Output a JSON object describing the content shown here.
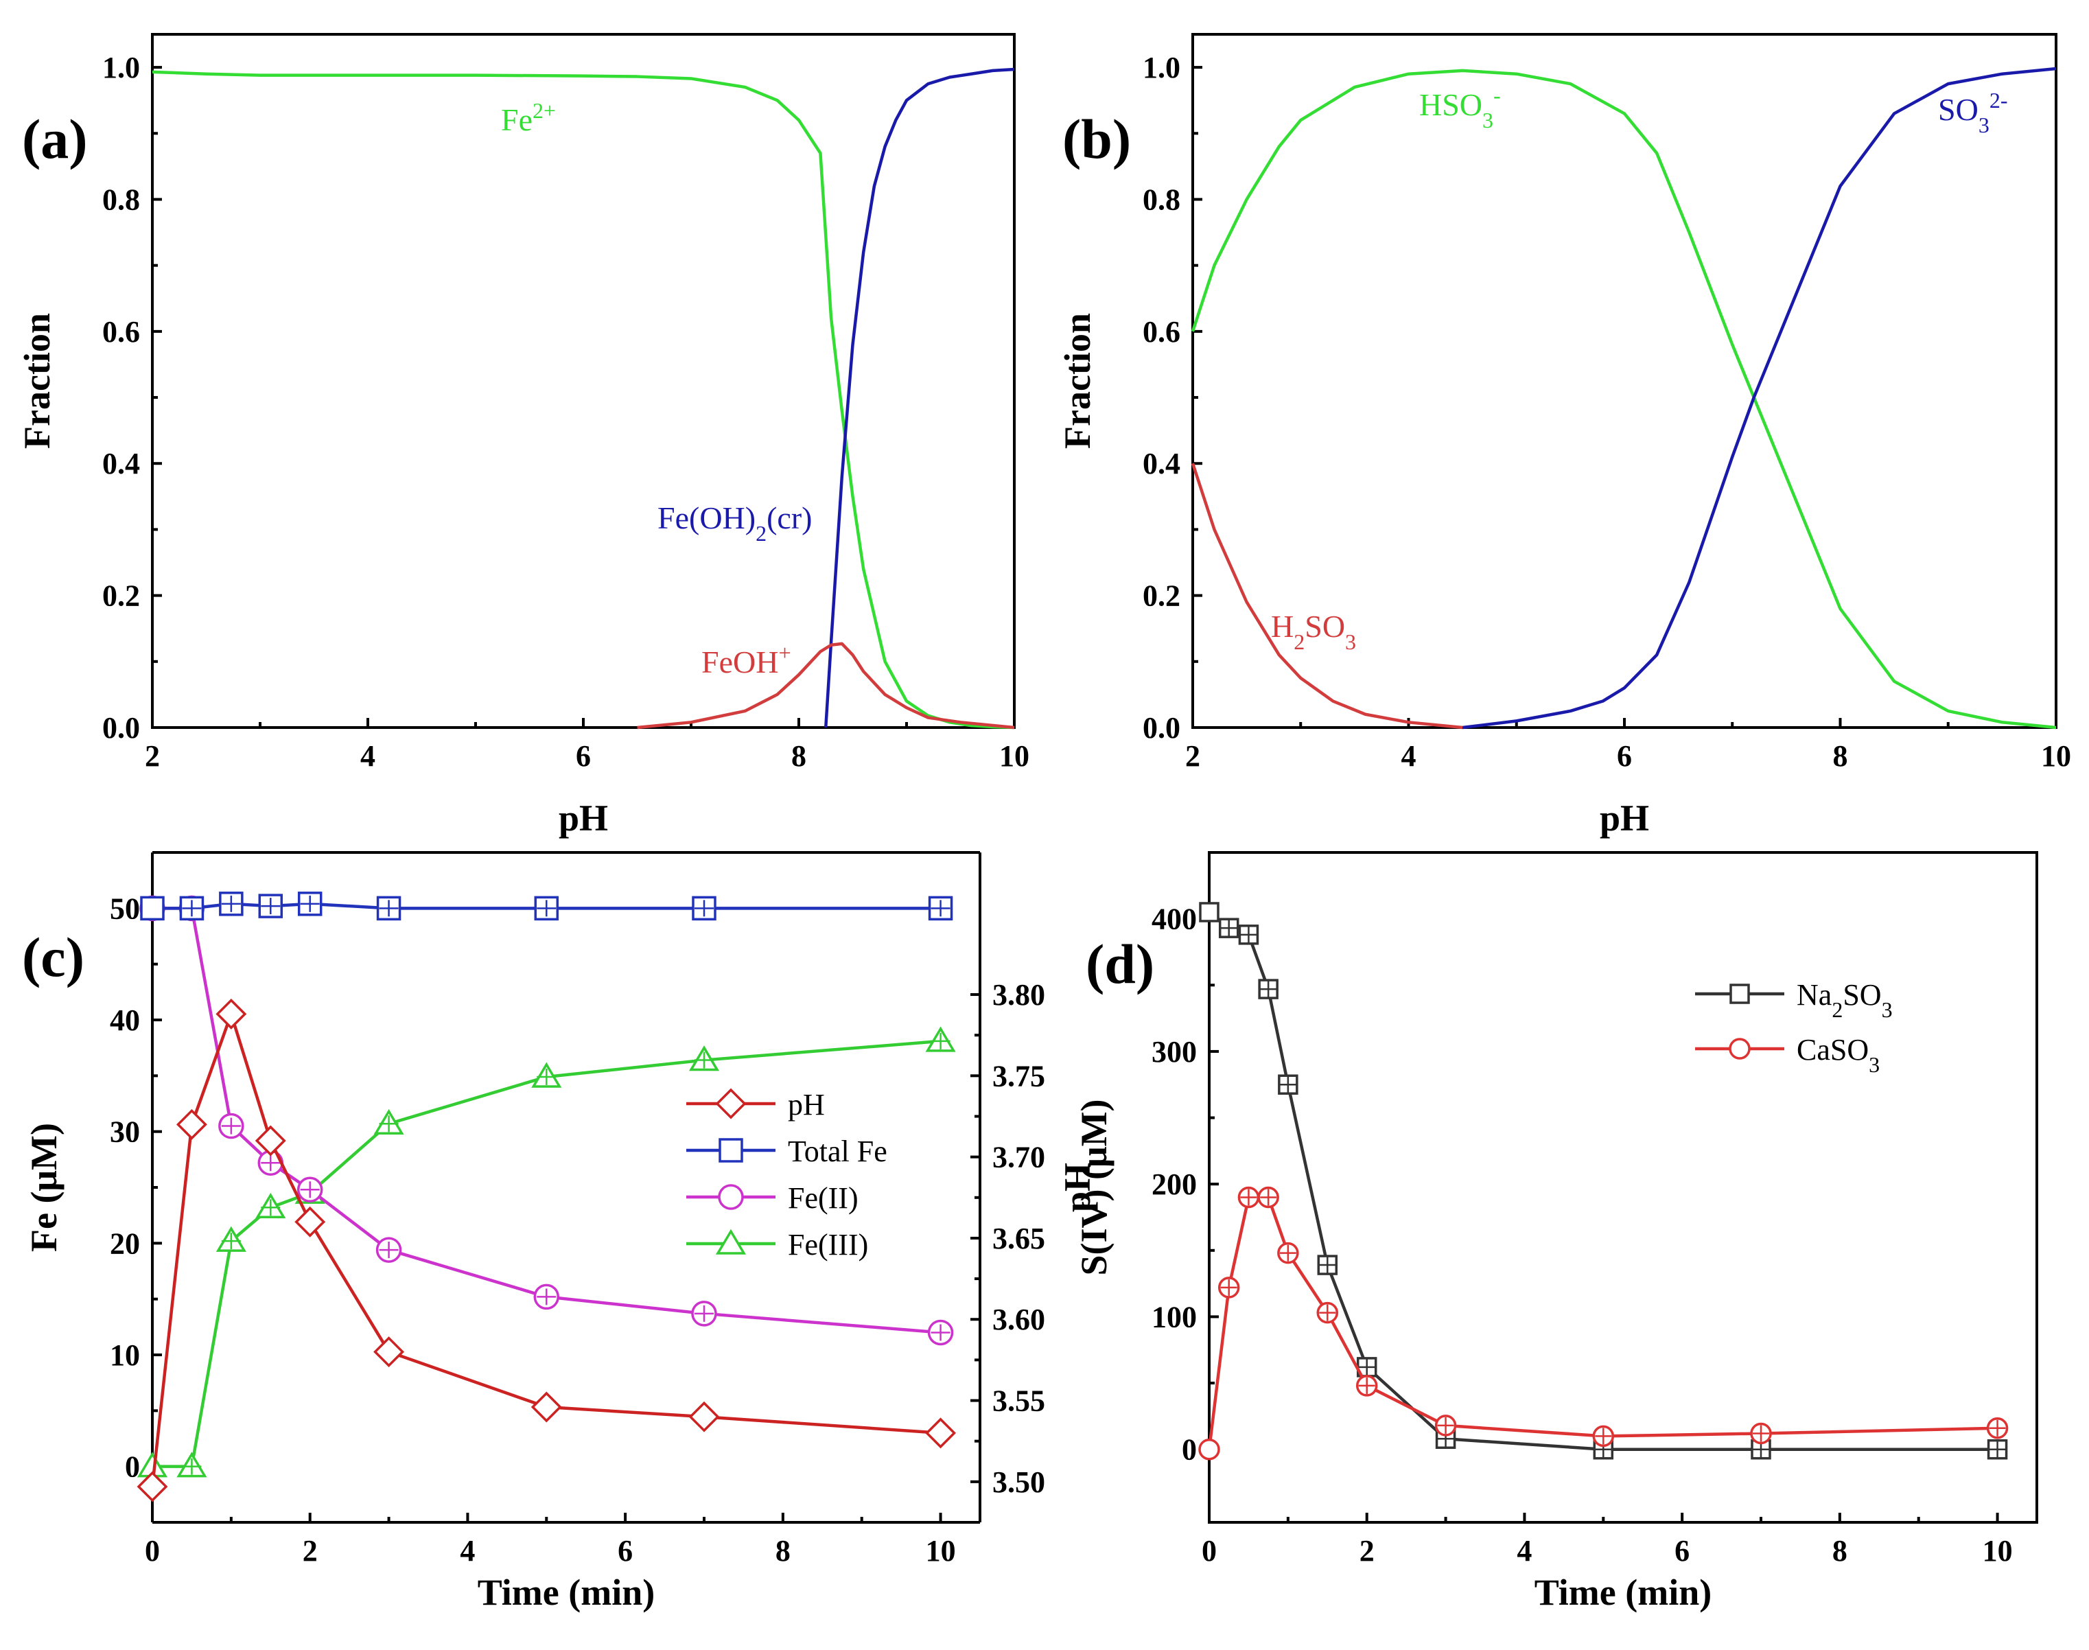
{
  "chart_data": [
    {
      "panel": "(a)",
      "type": "line",
      "xlabel": "pH",
      "ylabel": "Fraction",
      "xlim": [
        2,
        10
      ],
      "ylim": [
        0,
        1.05
      ],
      "xticks": [
        2,
        4,
        6,
        8,
        10
      ],
      "yticks": [
        0.0,
        0.2,
        0.4,
        0.6,
        0.8,
        1.0
      ],
      "ytick_labels": [
        "0.0",
        "0.2",
        "0.4",
        "0.6",
        "0.8",
        "1.0"
      ],
      "grid": false,
      "series": [
        {
          "label_main": "Fe",
          "label_sup": "2+",
          "label_sub": "",
          "label_tail": "",
          "color": "#33dd33",
          "x": [
            2,
            2.5,
            3,
            4,
            5,
            6,
            6.5,
            7,
            7.5,
            7.8,
            8.0,
            8.2,
            8.3,
            8.4,
            8.5,
            8.6,
            8.8,
            9.0,
            9.2,
            9.4,
            9.6,
            9.8,
            10
          ],
          "y": [
            0.993,
            0.99,
            0.988,
            0.988,
            0.988,
            0.987,
            0.986,
            0.983,
            0.97,
            0.95,
            0.92,
            0.87,
            0.62,
            0.48,
            0.35,
            0.24,
            0.1,
            0.04,
            0.018,
            0.008,
            0.003,
            0.001,
            0.0
          ]
        },
        {
          "label_main": "Fe(OH)",
          "label_sup": "",
          "label_sub": "2",
          "label_tail": "(cr)",
          "color": "#1a1aaa",
          "x": [
            8.25,
            8.3,
            8.4,
            8.5,
            8.6,
            8.7,
            8.8,
            8.9,
            9.0,
            9.2,
            9.4,
            9.6,
            9.8,
            10
          ],
          "y": [
            0.0,
            0.13,
            0.38,
            0.58,
            0.72,
            0.82,
            0.88,
            0.92,
            0.95,
            0.975,
            0.985,
            0.99,
            0.995,
            0.997
          ]
        },
        {
          "label_main": "FeOH",
          "label_sup": "+",
          "label_sub": "",
          "label_tail": "",
          "color": "#d23c3c",
          "x": [
            6.5,
            7.0,
            7.5,
            7.8,
            8.0,
            8.2,
            8.3,
            8.4,
            8.5,
            8.6,
            8.8,
            9.0,
            9.2,
            9.5,
            10
          ],
          "y": [
            0.0,
            0.008,
            0.025,
            0.05,
            0.08,
            0.115,
            0.125,
            0.127,
            0.11,
            0.085,
            0.05,
            0.03,
            0.015,
            0.008,
            0.0
          ]
        }
      ]
    },
    {
      "panel": "(b)",
      "type": "line",
      "xlabel": "pH",
      "ylabel": "Fraction",
      "xlim": [
        2,
        10
      ],
      "ylim": [
        0,
        1.05
      ],
      "xticks": [
        2,
        4,
        6,
        8,
        10
      ],
      "yticks": [
        0.0,
        0.2,
        0.4,
        0.6,
        0.8,
        1.0
      ],
      "ytick_labels": [
        "0.0",
        "0.2",
        "0.4",
        "0.6",
        "0.8",
        "1.0"
      ],
      "grid": false,
      "series": [
        {
          "label_main": "HSO",
          "label_sup": "-",
          "label_sub": "3",
          "label_tail": "",
          "color": "#33dd33",
          "x": [
            2,
            2.2,
            2.5,
            2.8,
            3.0,
            3.5,
            4.0,
            4.5,
            5.0,
            5.5,
            6.0,
            6.3,
            6.6,
            7.0,
            7.2,
            7.5,
            8.0,
            8.5,
            9.0,
            9.5,
            10
          ],
          "y": [
            0.6,
            0.7,
            0.8,
            0.88,
            0.92,
            0.97,
            0.99,
            0.995,
            0.99,
            0.975,
            0.93,
            0.87,
            0.75,
            0.58,
            0.5,
            0.38,
            0.18,
            0.07,
            0.025,
            0.008,
            0.0
          ]
        },
        {
          "label_main": "SO",
          "label_sup": "2-",
          "label_sub": "3",
          "label_tail": "",
          "color": "#1a1aaa",
          "x": [
            4.5,
            5.0,
            5.5,
            5.8,
            6.0,
            6.3,
            6.6,
            7.0,
            7.2,
            7.5,
            8.0,
            8.5,
            9.0,
            9.5,
            10
          ],
          "y": [
            0.0,
            0.01,
            0.025,
            0.04,
            0.06,
            0.11,
            0.22,
            0.41,
            0.5,
            0.62,
            0.82,
            0.93,
            0.975,
            0.99,
            0.998
          ]
        },
        {
          "label_main": "H",
          "label_sup": "",
          "label_sub": "2",
          "label_tail": "SO3",
          "color": "#d23c3c",
          "x": [
            2,
            2.2,
            2.5,
            2.8,
            3.0,
            3.3,
            3.6,
            4.0,
            4.5
          ],
          "y": [
            0.4,
            0.3,
            0.19,
            0.11,
            0.075,
            0.04,
            0.02,
            0.008,
            0.0
          ]
        }
      ]
    },
    {
      "panel": "(c)",
      "type": "line",
      "xlabel": "Time (min)",
      "ylabel": "Fe (μM)",
      "ylabel_right": "pH",
      "xlim": [
        0,
        10.5
      ],
      "ylim": [
        -5,
        55
      ],
      "ylim_right": [
        3.475,
        3.8875
      ],
      "xticks": [
        0,
        2,
        4,
        6,
        8,
        10
      ],
      "yticks": [
        0,
        10,
        20,
        30,
        40,
        50
      ],
      "yticks_right": [
        3.5,
        3.55,
        3.6,
        3.65,
        3.7,
        3.75,
        3.8
      ],
      "ytick_labels_right": [
        "3.50",
        "3.55",
        "3.60",
        "3.65",
        "3.70",
        "3.75",
        "3.80"
      ],
      "grid": false,
      "legend": "center-right",
      "series": [
        {
          "name": "pH",
          "axis": "right",
          "marker": "diamond",
          "color": "#cc2222",
          "x": [
            0,
            0.5,
            1,
            1.5,
            2,
            3,
            5,
            7,
            10
          ],
          "y": [
            3.497,
            3.72,
            3.788,
            3.71,
            3.66,
            3.58,
            3.546,
            3.54,
            3.53
          ]
        },
        {
          "name": "Total Fe",
          "axis": "left",
          "marker": "square",
          "color": "#2233bb",
          "x": [
            0,
            0.5,
            1,
            1.5,
            2,
            3,
            5,
            7,
            10
          ],
          "y": [
            50,
            50,
            50.4,
            50.2,
            50.4,
            50,
            50,
            50,
            50
          ]
        },
        {
          "name": "Fe(II)",
          "axis": "left",
          "marker": "circle",
          "color": "#cc33cc",
          "x": [
            0,
            0.5,
            1,
            1.5,
            2,
            3,
            5,
            7,
            10
          ],
          "y": [
            50,
            50,
            30.5,
            27.2,
            24.8,
            19.4,
            15.2,
            13.7,
            12
          ]
        },
        {
          "name": "Fe(III)",
          "axis": "left",
          "marker": "triangle",
          "color": "#33cc33",
          "x": [
            0,
            0.5,
            1,
            1.5,
            2,
            3,
            5,
            7,
            10
          ],
          "y": [
            0,
            0,
            20.2,
            23.2,
            24.5,
            30.7,
            34.9,
            36.4,
            38.1
          ]
        }
      ]
    },
    {
      "panel": "(d)",
      "type": "line",
      "xlabel": "Time (min)",
      "ylabel": "S(IV) (μM)",
      "xlim": [
        0,
        10.5
      ],
      "ylim": [
        -55,
        450
      ],
      "xticks": [
        0,
        2,
        4,
        6,
        8,
        10
      ],
      "yticks": [
        0,
        100,
        200,
        300,
        400
      ],
      "grid": false,
      "legend": "top-right",
      "series": [
        {
          "label_main": "Na",
          "label_sub": "2",
          "label_tail": "SO",
          "label_sub2": "3",
          "marker": "square",
          "color": "#333333",
          "x": [
            0,
            0.25,
            0.5,
            0.75,
            1.0,
            1.5,
            2,
            3,
            5,
            7,
            10
          ],
          "y": [
            405,
            393,
            388,
            347,
            275,
            139,
            62,
            8,
            0,
            0,
            0
          ]
        },
        {
          "label_main": "CaSO",
          "label_sub": "3",
          "label_tail": "",
          "label_sub2": "",
          "marker": "circle",
          "color": "#dd3333",
          "x": [
            0,
            0.25,
            0.5,
            0.75,
            1.0,
            1.5,
            2,
            3,
            5,
            7,
            10
          ],
          "y": [
            0,
            122,
            190,
            190,
            148,
            103,
            48,
            18,
            10,
            12,
            16
          ]
        }
      ]
    }
  ]
}
